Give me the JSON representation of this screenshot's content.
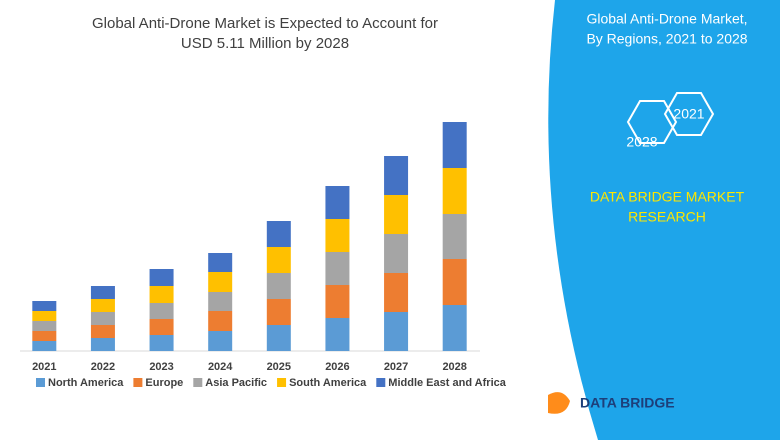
{
  "chart_data": {
    "type": "bar",
    "stacked": true,
    "title": [
      "Global Anti-Drone Market is Expected to Account for",
      "USD 5.11 Million by 2028"
    ],
    "categories": [
      "2021",
      "2022",
      "2023",
      "2024",
      "2025",
      "2026",
      "2027",
      "2028"
    ],
    "series": [
      {
        "name": "North America",
        "color": "#5b9bd5",
        "values": [
          10,
          13,
          16,
          20,
          26,
          33,
          39,
          46
        ]
      },
      {
        "name": "Europe",
        "color": "#ed7d31",
        "values": [
          10,
          13,
          16,
          20,
          26,
          33,
          39,
          46
        ]
      },
      {
        "name": "Asia Pacific",
        "color": "#a5a5a5",
        "values": [
          10,
          13,
          16,
          19,
          26,
          33,
          39,
          45
        ]
      },
      {
        "name": "South America",
        "color": "#ffc000",
        "values": [
          10,
          13,
          17,
          20,
          26,
          33,
          39,
          46
        ]
      },
      {
        "name": "Middle East and Africa",
        "color": "#4472c4",
        "values": [
          10,
          13,
          17,
          19,
          26,
          33,
          39,
          46
        ]
      }
    ]
  },
  "side_panel": {
    "title": [
      "Global Anti-Drone Market,",
      "By Regions, 2021 to 2028"
    ],
    "hexagons": [
      "2021",
      "2028"
    ],
    "brand": [
      "DATA BRIDGE MARKET",
      "RESEARCH"
    ],
    "logo": "DATA BRIDGE"
  }
}
